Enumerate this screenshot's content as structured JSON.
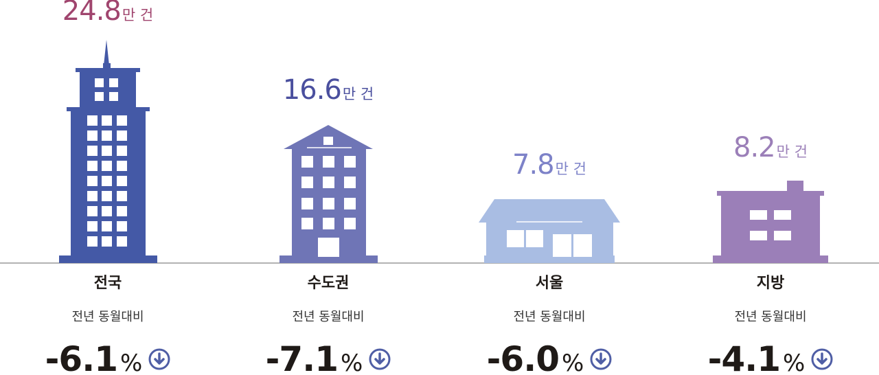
{
  "items": [
    {
      "value": "24.8",
      "unit": "만 건",
      "region": "전국",
      "compare": "전년 동월대비",
      "change": "-6.1",
      "change_unit": "%"
    },
    {
      "value": "16.6",
      "unit": "만 건",
      "region": "수도권",
      "compare": "전년 동월대비",
      "change": "-7.1",
      "change_unit": "%"
    },
    {
      "value": "7.8",
      "unit": "만 건",
      "region": "서울",
      "compare": "전년 동월대비",
      "change": "-6.0",
      "change_unit": "%"
    },
    {
      "value": "8.2",
      "unit": "만 건",
      "region": "지방",
      "compare": "전년 동월대비",
      "change": "-4.1",
      "change_unit": "%"
    }
  ]
}
